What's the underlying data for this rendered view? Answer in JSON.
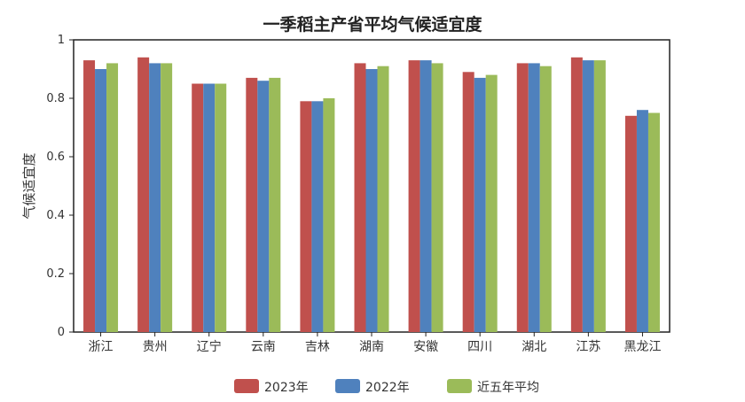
{
  "chart_data": {
    "type": "bar",
    "title": "一季稻主产省平均气候适宜度",
    "xlabel": "",
    "ylabel": "气候适宜度",
    "ylim": [
      0,
      1
    ],
    "yticks": [
      0,
      0.2,
      0.4,
      0.6,
      0.8,
      1
    ],
    "ytick_labels": [
      "0",
      "0.2",
      "0.4",
      "0.6",
      "0.8",
      "1"
    ],
    "grid": false,
    "legend_position": "bottom",
    "categories": [
      "浙江",
      "贵州",
      "辽宁",
      "云南",
      "吉林",
      "湖南",
      "安徽",
      "四川",
      "湖北",
      "江苏",
      "黑龙江"
    ],
    "series": [
      {
        "name": "2023年",
        "color": "#C0504D",
        "values": [
          0.93,
          0.94,
          0.85,
          0.87,
          0.79,
          0.92,
          0.93,
          0.89,
          0.92,
          0.94,
          0.74
        ]
      },
      {
        "name": "2022年",
        "color": "#4F81BD",
        "values": [
          0.9,
          0.92,
          0.85,
          0.86,
          0.79,
          0.9,
          0.93,
          0.87,
          0.92,
          0.93,
          0.76
        ]
      },
      {
        "name": "近五年平均",
        "color": "#9BBB59",
        "values": [
          0.92,
          0.92,
          0.85,
          0.87,
          0.8,
          0.91,
          0.92,
          0.88,
          0.91,
          0.93,
          0.75
        ]
      }
    ]
  }
}
